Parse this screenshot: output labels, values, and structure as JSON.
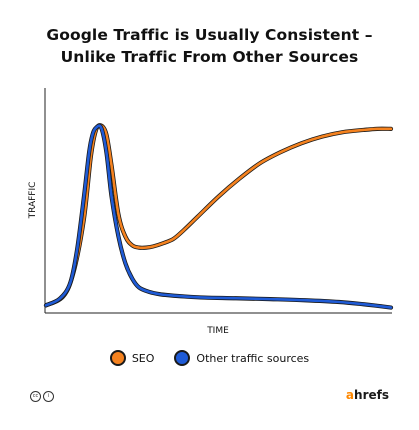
{
  "chart_data": {
    "type": "line",
    "title_lines": [
      "Google Traffic is Usually Consistent –",
      "Unlike Traffic From Other Sources"
    ],
    "xlabel": "TIME",
    "ylabel": "TRAFFIC",
    "xlim": [
      0,
      100
    ],
    "ylim": [
      0,
      100
    ],
    "grid": false,
    "legend_position": "bottom-center",
    "series": [
      {
        "name": "SEO",
        "color": "#f5821f",
        "x": [
          0,
          5,
          8,
          11,
          13,
          14.5,
          16,
          17.5,
          19,
          21,
          23,
          25,
          27,
          29,
          31,
          34,
          37,
          40,
          44,
          50,
          56,
          62,
          68,
          74,
          80,
          86,
          92,
          96,
          100
        ],
        "y": [
          3,
          7,
          18,
          42,
          70,
          82,
          84,
          80,
          66,
          44,
          34,
          30,
          29,
          29,
          29.5,
          31,
          33,
          37,
          43,
          52,
          60,
          67,
          72,
          76,
          79,
          81,
          82,
          82.5,
          82.5
        ]
      },
      {
        "name": "Other traffic sources",
        "color": "#1f5bd6",
        "x": [
          0,
          4,
          7,
          9,
          11,
          12.5,
          13.5,
          14.5,
          16,
          17.5,
          19,
          21,
          23,
          25,
          27,
          30,
          33,
          36,
          40,
          46,
          55,
          65,
          75,
          85,
          92,
          96,
          100
        ],
        "y": [
          3,
          6,
          13,
          28,
          52,
          72,
          80,
          83,
          83,
          72,
          52,
          34,
          22,
          15,
          11,
          9,
          8,
          7.5,
          7,
          6.5,
          6.2,
          5.8,
          5.3,
          4.5,
          3.5,
          2.8,
          2
        ]
      }
    ]
  },
  "legend": {
    "seo": "SEO",
    "other": "Other traffic sources"
  },
  "footer": {
    "brand_a": "a",
    "brand_rest": "hrefs"
  }
}
